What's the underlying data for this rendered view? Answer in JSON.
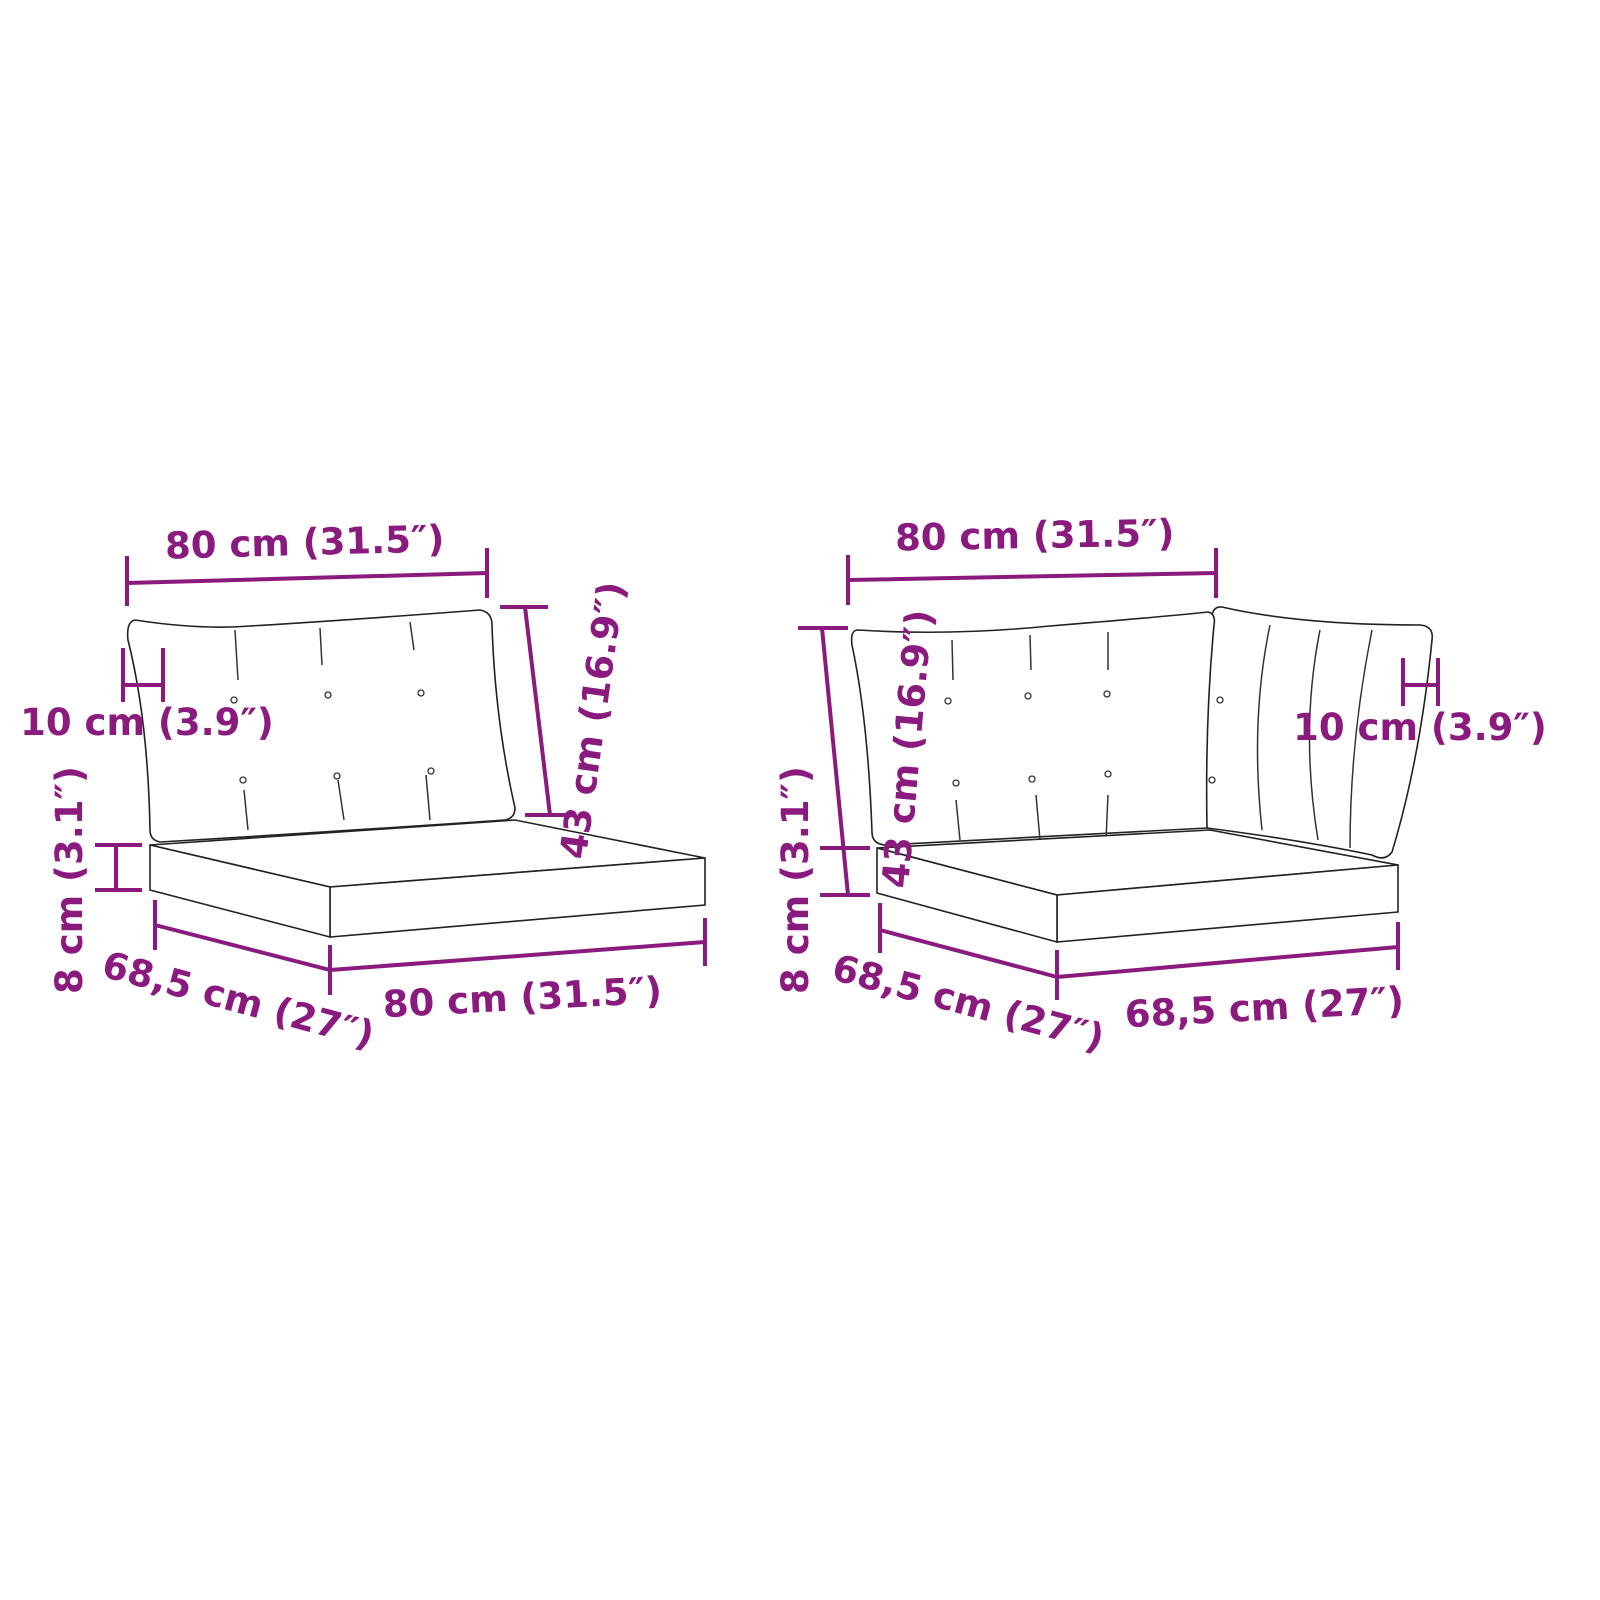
{
  "colors": {
    "dimension": "#8a1a7e",
    "outline": "#222222"
  },
  "left_item": {
    "width_top": "80 cm (31.5″)",
    "back_height": "43 cm (16.9″)",
    "back_thickness": "10 cm (3.9″)",
    "seat_thickness": "8 cm (3.1″)",
    "seat_depth": "68,5 cm (27″)",
    "seat_width": "80 cm (31.5″)"
  },
  "right_item": {
    "width_top": "80 cm (31.5″)",
    "back_height": "43 cm (16.9″)",
    "back_thickness": "10 cm (3.9″)",
    "seat_thickness": "8 cm (3.1″)",
    "seat_depth": "68,5 cm (27″)",
    "seat_width": "68,5 cm (27″)"
  }
}
